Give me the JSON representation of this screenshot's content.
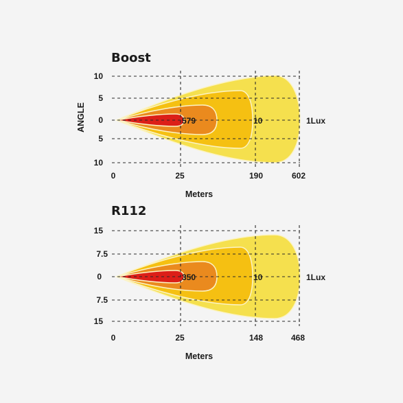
{
  "colors": {
    "zone_outer": "#f5e04e",
    "zone_mid": "#f5c012",
    "zone_inner": "#ea8a1e",
    "zone_core": "#dc1f18",
    "outline": "#fbf3c6"
  },
  "chart_data": [
    {
      "type": "beam-pattern",
      "title": "Boost",
      "ylabel": "ANGLE",
      "xlabel": "Meters",
      "x_ticks": [
        "0",
        "25",
        "190",
        "602"
      ],
      "y_ticks": [
        "10",
        "5",
        "0",
        "5",
        "10"
      ],
      "zone_values": [
        "579",
        "10"
      ],
      "lux_label": "1Lux"
    },
    {
      "type": "beam-pattern",
      "title": "R112",
      "ylabel": "",
      "xlabel": "Meters",
      "x_ticks": [
        "0",
        "25",
        "148",
        "468"
      ],
      "y_ticks": [
        "15",
        "7.5",
        "0",
        "7.5",
        "15"
      ],
      "zone_values": [
        "350",
        "10"
      ],
      "lux_label": "1Lux"
    }
  ]
}
